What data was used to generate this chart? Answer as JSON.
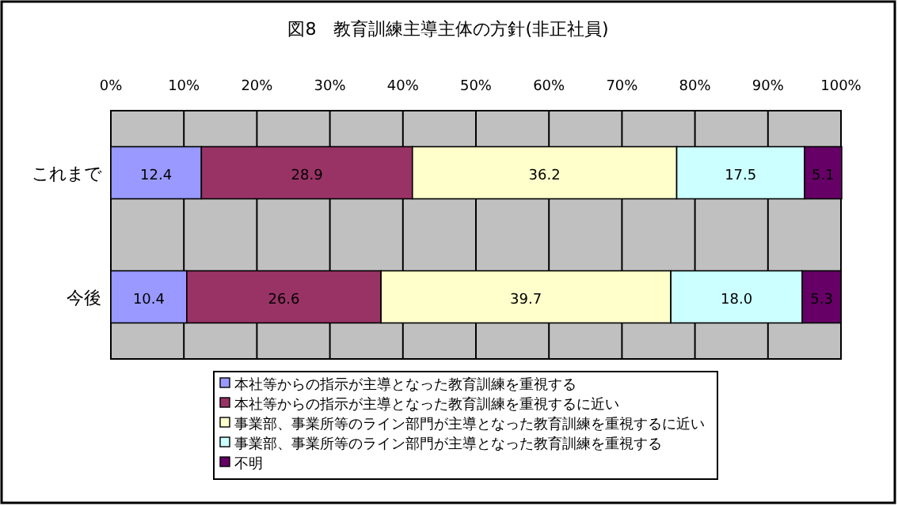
{
  "chart_data": {
    "type": "bar",
    "orientation": "horizontal",
    "stacked": true,
    "title": "図8　教育訓練主導主体の方針(非正社員)",
    "categories": [
      "これまで",
      "今後"
    ],
    "series": [
      {
        "name": "本社等からの指示が主導となった教育訓練を重視する",
        "color": "#9999ff",
        "values": [
          12.4,
          10.4
        ],
        "value_labels": [
          "12.4",
          "10.4"
        ]
      },
      {
        "name": "本社等からの指示が主導となった教育訓練を重視するに近い",
        "color": "#993366",
        "values": [
          28.9,
          26.6
        ],
        "value_labels": [
          "28.9",
          "26.6"
        ]
      },
      {
        "name": "事業部、事業所等のライン部門が主導となった教育訓練を重視するに近い",
        "color": "#ffffcc",
        "values": [
          36.2,
          39.7
        ],
        "value_labels": [
          "36.2",
          "39.7"
        ]
      },
      {
        "name": "事業部、事業所等のライン部門が主導となった教育訓練を重視する",
        "color": "#ccffff",
        "values": [
          17.5,
          18.0
        ],
        "value_labels": [
          "17.5",
          "18.0"
        ]
      },
      {
        "name": "不明",
        "color": "#660066",
        "values": [
          5.1,
          5.3
        ],
        "value_labels": [
          "5.1",
          "5.3"
        ]
      }
    ],
    "xlim": [
      0,
      100
    ],
    "xticks": [
      {
        "value": 0,
        "label": "0%"
      },
      {
        "value": 10,
        "label": "10%"
      },
      {
        "value": 20,
        "label": "20%"
      },
      {
        "value": 30,
        "label": "30%"
      },
      {
        "value": 40,
        "label": "40%"
      },
      {
        "value": 50,
        "label": "50%"
      },
      {
        "value": 60,
        "label": "60%"
      },
      {
        "value": 70,
        "label": "70%"
      },
      {
        "value": 80,
        "label": "80%"
      },
      {
        "value": 90,
        "label": "90%"
      },
      {
        "value": 100,
        "label": "100%"
      }
    ],
    "grid": "x",
    "legend": "bottom"
  }
}
